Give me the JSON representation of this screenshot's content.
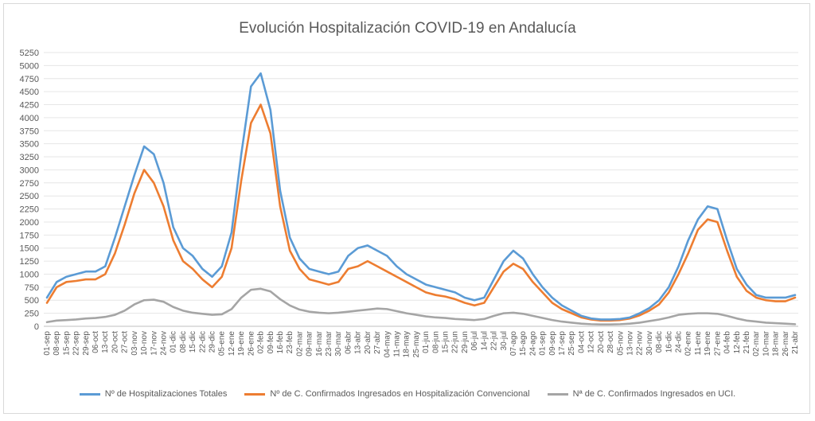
{
  "chart_data": {
    "type": "line",
    "title": "Evolución Hospitalización COVID-19 en Andalucía",
    "xlabel": "",
    "ylabel": "",
    "ylim": [
      0,
      5250
    ],
    "yticks": [
      0,
      250,
      500,
      750,
      1000,
      1250,
      1500,
      1750,
      2000,
      2250,
      2500,
      2750,
      3000,
      3250,
      3500,
      3750,
      4000,
      4250,
      4500,
      4750,
      5000,
      5250
    ],
    "categories": [
      "01-sep",
      "08-sep",
      "15-sep",
      "22-sep",
      "29-sep",
      "06-oct",
      "13-oct",
      "20-oct",
      "27-oct",
      "03-nov",
      "10-nov",
      "17-nov",
      "24-nov",
      "01-dic",
      "08-dic",
      "15-dic",
      "22-dic",
      "29-dic",
      "05-ene",
      "12-ene",
      "19-ene",
      "26-ene",
      "02-feb",
      "09-feb",
      "16-feb",
      "23-feb",
      "02-mar",
      "09-mar",
      "16-mar",
      "23-mar",
      "30-mar",
      "06-abr",
      "13-abr",
      "20-abr",
      "27-abr",
      "04-may",
      "11-may",
      "18-may",
      "25-may",
      "01-jun",
      "08-jun",
      "15-jun",
      "22-jun",
      "29-jun",
      "06-jul",
      "14-jul",
      "22-jul",
      "30-jul",
      "07-ago",
      "15-ago",
      "24-ago",
      "01-sep",
      "09-sep",
      "17-sep",
      "25-sep",
      "04-oct",
      "12-oct",
      "20-oct",
      "28-oct",
      "05-nov",
      "13-nov",
      "22-nov",
      "30-nov",
      "08-dic",
      "16-dic",
      "24-dic",
      "02-ene",
      "11-ene",
      "19-ene",
      "27-ene",
      "04-feb",
      "12-feb",
      "21-feb",
      "02-mar",
      "10-mar",
      "18-mar",
      "26-mar",
      "21-abr"
    ],
    "grid": true,
    "legend_position": "bottom",
    "series": [
      {
        "name": "Nº de Hospitalizaciones Totales",
        "color": "#5b9bd5",
        "values": [
          550,
          850,
          950,
          1000,
          1050,
          1050,
          1150,
          1700,
          2300,
          2900,
          3450,
          3300,
          2750,
          1900,
          1500,
          1350,
          1100,
          950,
          1150,
          1800,
          3300,
          4600,
          4850,
          4150,
          2600,
          1700,
          1300,
          1100,
          1050,
          1000,
          1050,
          1350,
          1500,
          1550,
          1450,
          1350,
          1150,
          1000,
          900,
          800,
          750,
          700,
          650,
          550,
          500,
          550,
          900,
          1250,
          1450,
          1300,
          1000,
          750,
          550,
          400,
          300,
          200,
          150,
          130,
          130,
          140,
          170,
          250,
          350,
          500,
          750,
          1150,
          1650,
          2050,
          2300,
          2250,
          1650,
          1100,
          800,
          600,
          550,
          550,
          550,
          600
        ]
      },
      {
        "name": "Nº de C. Confirmados Ingresados en Hospitalización Convencional",
        "color": "#ed7d31",
        "values": [
          450,
          750,
          850,
          870,
          900,
          900,
          1000,
          1400,
          1950,
          2550,
          3000,
          2750,
          2300,
          1650,
          1250,
          1100,
          900,
          750,
          950,
          1500,
          2800,
          3900,
          4250,
          3700,
          2300,
          1450,
          1100,
          900,
          850,
          800,
          850,
          1100,
          1150,
          1250,
          1150,
          1050,
          950,
          850,
          750,
          650,
          600,
          570,
          520,
          450,
          400,
          450,
          750,
          1050,
          1200,
          1100,
          850,
          650,
          450,
          330,
          250,
          170,
          130,
          110,
          110,
          120,
          150,
          210,
          300,
          420,
          650,
          1000,
          1400,
          1850,
          2050,
          2000,
          1450,
          950,
          680,
          550,
          500,
          480,
          480,
          550
        ]
      },
      {
        "name": "Nª de C. Confirmados Ingresados en UCI.",
        "color": "#a5a5a5",
        "values": [
          80,
          110,
          120,
          130,
          150,
          160,
          180,
          220,
          300,
          420,
          500,
          510,
          470,
          370,
          300,
          260,
          240,
          220,
          230,
          330,
          550,
          700,
          720,
          670,
          520,
          400,
          320,
          280,
          260,
          250,
          260,
          280,
          300,
          320,
          340,
          330,
          290,
          250,
          220,
          190,
          170,
          160,
          140,
          130,
          120,
          140,
          200,
          250,
          260,
          240,
          200,
          160,
          120,
          90,
          70,
          50,
          40,
          35,
          35,
          40,
          50,
          70,
          100,
          130,
          170,
          220,
          240,
          250,
          250,
          240,
          200,
          150,
          110,
          90,
          70,
          60,
          50,
          40
        ]
      }
    ]
  }
}
